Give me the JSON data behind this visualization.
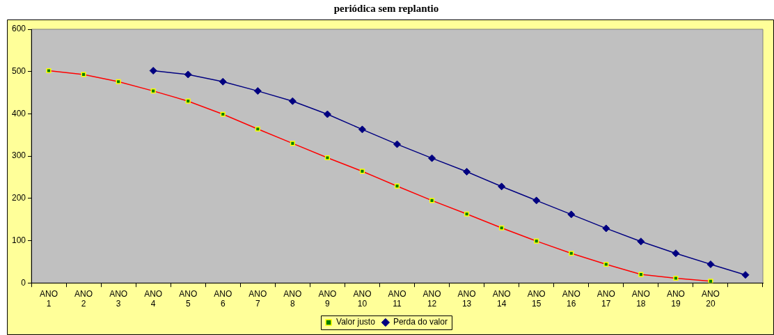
{
  "chart_data": {
    "type": "line",
    "title": "periódica sem replantio",
    "categories": [
      "ANO 1",
      "ANO 2",
      "ANO 3",
      "ANO 4",
      "ANO 5",
      "ANO 6",
      "ANO 7",
      "ANO 8",
      "ANO 9",
      "ANO 10",
      "ANO 11",
      "ANO 12",
      "ANO 13",
      "ANO 14",
      "ANO 15",
      "ANO 16",
      "ANO 17",
      "ANO 18",
      "ANO 19",
      "ANO 20",
      null
    ],
    "series": [
      {
        "name": "Valor justo",
        "color": "#ff0000",
        "marker": "square",
        "values": [
          502,
          493,
          476,
          454,
          430,
          399,
          364,
          330,
          296,
          264,
          229,
          195,
          163,
          130,
          99,
          70,
          44,
          20,
          11,
          4,
          null
        ]
      },
      {
        "name": "Perda do valor",
        "color": "#000080",
        "marker": "diamond",
        "values": [
          null,
          null,
          null,
          502,
          493,
          476,
          454,
          430,
          399,
          363,
          328,
          295,
          263,
          228,
          195,
          162,
          129,
          98,
          70,
          44,
          19
        ]
      }
    ],
    "ylim": [
      0,
      600
    ],
    "yticks": [
      0,
      100,
      200,
      300,
      400,
      500,
      600
    ],
    "grid": false,
    "legend": "bottom"
  }
}
